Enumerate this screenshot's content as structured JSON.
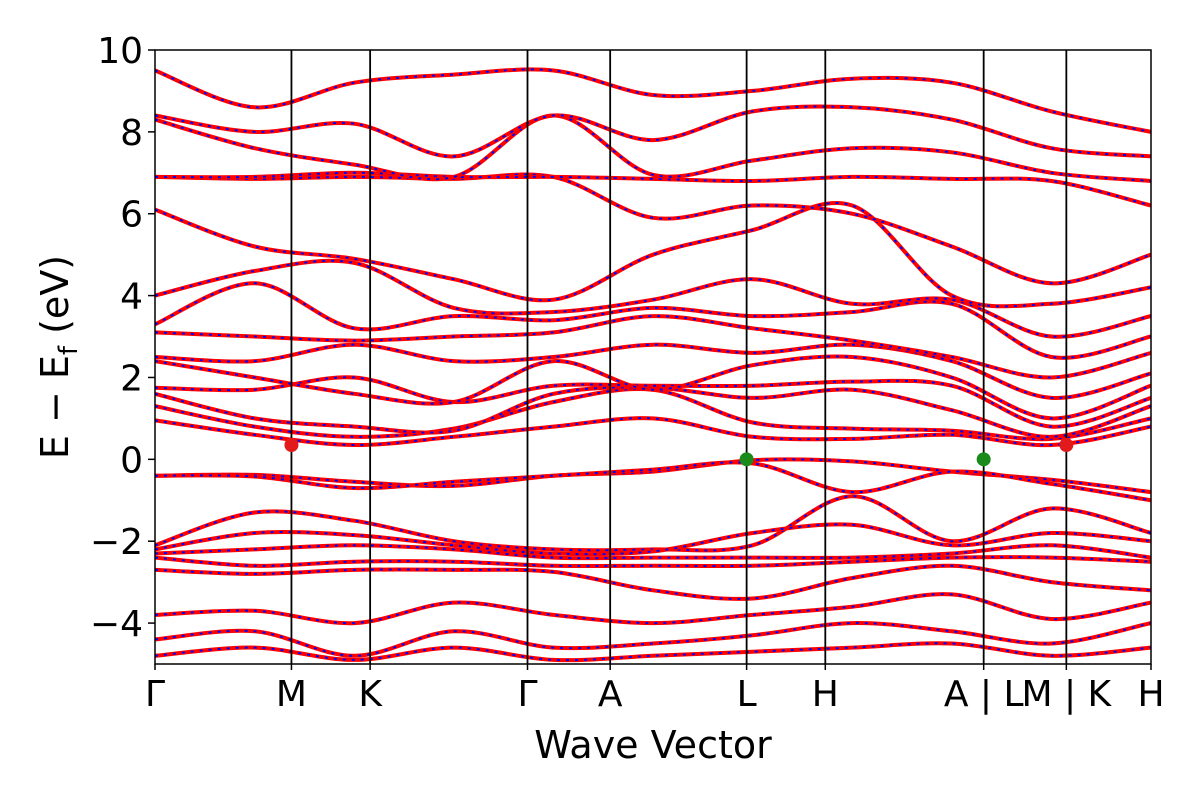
{
  "chart_data": {
    "type": "line",
    "title": "",
    "xlabel": "Wave Vector",
    "ylabel_main": "E − E",
    "ylabel_sub": "f",
    "ylabel_unit": " (eV)",
    "ylim": [
      -5,
      10
    ],
    "yticks": [
      {
        "value": 10,
        "label": "10"
      },
      {
        "value": 8,
        "label": "8"
      },
      {
        "value": 6,
        "label": "6"
      },
      {
        "value": 4,
        "label": "4"
      },
      {
        "value": 2,
        "label": "2"
      },
      {
        "value": 0,
        "label": "0"
      },
      {
        "value": -2,
        "label": "−2"
      },
      {
        "value": -4,
        "label": "−4"
      }
    ],
    "xlim": [
      0,
      1
    ],
    "kpoints": [
      {
        "x": 0.0,
        "label": "Γ"
      },
      {
        "x": 0.137,
        "label": "M"
      },
      {
        "x": 0.216,
        "label": "K"
      },
      {
        "x": 0.374,
        "label": "Γ"
      },
      {
        "x": 0.457,
        "label": "A"
      },
      {
        "x": 0.594,
        "label": "L"
      },
      {
        "x": 0.673,
        "label": "H"
      },
      {
        "x": 0.832,
        "label": "A | L"
      },
      {
        "x": 0.915,
        "label": "M | K"
      },
      {
        "x": 1.0,
        "label": "H"
      }
    ],
    "markers": [
      {
        "x": 0.137,
        "y": 0.35,
        "color": "#e31a1c",
        "name": "cbm-marker"
      },
      {
        "x": 0.915,
        "y": 0.35,
        "color": "#e31a1c",
        "name": "cbm-marker"
      },
      {
        "x": 0.594,
        "y": 0.0,
        "color": "#1a8a1a",
        "name": "vbm-marker"
      },
      {
        "x": 0.832,
        "y": 0.0,
        "color": "#1a8a1a",
        "name": "vbm-marker"
      }
    ],
    "band_colors": {
      "primary": "#ff0000",
      "overlay": "#0000ff"
    },
    "bands": [
      {
        "y": [
          -0.4,
          -0.38,
          -0.55,
          -0.65,
          -0.4,
          -0.3,
          -0.02,
          -0.05,
          -0.3,
          -0.5,
          -0.8
        ]
      },
      {
        "y": [
          -0.4,
          -0.42,
          -0.7,
          -0.55,
          -0.4,
          -0.25,
          -0.1,
          -0.8,
          -0.3,
          -0.6,
          -1.0
        ]
      },
      {
        "y": [
          0.95,
          0.6,
          0.35,
          0.55,
          0.8,
          1.0,
          0.55,
          0.5,
          0.6,
          0.35,
          0.8
        ]
      },
      {
        "y": [
          1.3,
          0.8,
          0.55,
          0.75,
          1.4,
          1.7,
          0.9,
          0.75,
          0.7,
          0.5,
          1.0
        ]
      },
      {
        "y": [
          1.6,
          1.0,
          0.8,
          0.7,
          1.6,
          1.75,
          1.5,
          1.7,
          1.2,
          0.55,
          1.3
        ]
      },
      {
        "y": [
          1.75,
          1.7,
          2.0,
          1.4,
          1.8,
          1.8,
          1.8,
          1.9,
          1.8,
          0.8,
          1.5
        ]
      },
      {
        "y": [
          2.4,
          2.0,
          1.6,
          1.4,
          2.4,
          1.7,
          2.3,
          2.5,
          2.0,
          1.0,
          1.8
        ]
      },
      {
        "y": [
          2.5,
          2.4,
          2.8,
          2.4,
          2.5,
          2.8,
          2.6,
          2.8,
          2.4,
          1.5,
          2.1
        ]
      },
      {
        "y": [
          3.1,
          3.0,
          2.9,
          3.0,
          3.1,
          3.5,
          3.2,
          2.9,
          2.5,
          2.0,
          2.6
        ]
      },
      {
        "y": [
          3.3,
          4.3,
          3.2,
          3.5,
          3.4,
          3.7,
          3.5,
          3.6,
          3.8,
          2.5,
          3.0
        ]
      },
      {
        "y": [
          4.0,
          4.6,
          4.8,
          3.7,
          3.6,
          3.9,
          4.4,
          3.8,
          3.9,
          3.0,
          3.5
        ]
      },
      {
        "y": [
          6.1,
          5.2,
          4.9,
          4.4,
          3.9,
          5.0,
          5.6,
          6.2,
          4.0,
          3.8,
          4.2
        ]
      },
      {
        "y": [
          6.9,
          6.85,
          6.9,
          6.85,
          6.9,
          5.9,
          6.2,
          6.0,
          5.2,
          4.3,
          5.0
        ]
      },
      {
        "y": [
          6.9,
          6.9,
          7.0,
          6.9,
          6.9,
          6.85,
          6.8,
          6.9,
          6.85,
          6.8,
          6.2
        ]
      },
      {
        "y": [
          8.3,
          7.6,
          7.2,
          6.9,
          8.4,
          6.95,
          7.3,
          7.6,
          7.5,
          7.0,
          6.8
        ]
      },
      {
        "y": [
          8.4,
          8.0,
          8.2,
          7.4,
          8.4,
          7.8,
          8.5,
          8.6,
          8.3,
          7.6,
          7.4
        ]
      },
      {
        "y": [
          9.5,
          8.6,
          9.2,
          9.4,
          9.5,
          8.9,
          9.0,
          9.3,
          9.2,
          8.5,
          8.0
        ]
      },
      {
        "y": [
          -2.1,
          -1.3,
          -1.5,
          -2.0,
          -2.2,
          -2.2,
          -2.1,
          -0.9,
          -2.0,
          -1.2,
          -1.8
        ]
      },
      {
        "y": [
          -2.2,
          -1.8,
          -1.85,
          -2.1,
          -2.3,
          -2.25,
          -1.8,
          -1.6,
          -2.1,
          -1.8,
          -2.0
        ]
      },
      {
        "y": [
          -2.3,
          -2.2,
          -2.1,
          -2.2,
          -2.4,
          -2.4,
          -2.4,
          -2.4,
          -2.3,
          -2.1,
          -2.4
        ]
      },
      {
        "y": [
          -2.4,
          -2.6,
          -2.5,
          -2.5,
          -2.6,
          -2.6,
          -2.6,
          -2.5,
          -2.4,
          -2.4,
          -2.5
        ]
      },
      {
        "y": [
          -2.7,
          -2.8,
          -2.7,
          -2.7,
          -2.75,
          -3.2,
          -3.4,
          -2.9,
          -2.6,
          -3.0,
          -3.2
        ]
      },
      {
        "y": [
          -3.8,
          -3.7,
          -4.0,
          -3.5,
          -3.8,
          -4.0,
          -3.8,
          -3.6,
          -3.3,
          -3.9,
          -3.5
        ]
      },
      {
        "y": [
          -4.4,
          -4.2,
          -4.8,
          -4.2,
          -4.6,
          -4.5,
          -4.3,
          -4.0,
          -4.2,
          -4.5,
          -4.0
        ]
      },
      {
        "y": [
          -4.8,
          -4.6,
          -4.9,
          -4.6,
          -4.9,
          -4.8,
          -4.7,
          -4.6,
          -4.5,
          -4.8,
          -4.6
        ]
      }
    ]
  }
}
